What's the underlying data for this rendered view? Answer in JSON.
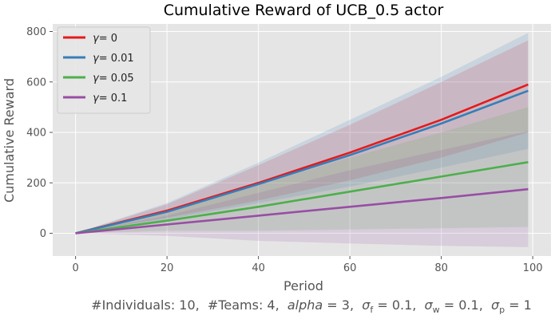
{
  "chart_data": {
    "type": "line",
    "title": "Cumulative Reward of UCB_0.5 actor",
    "xlabel": "Period",
    "ylabel": "Cumulative Reward",
    "xlim": [
      -5,
      104
    ],
    "ylim": [
      -90,
      830
    ],
    "xticks": [
      0,
      20,
      40,
      60,
      80,
      100
    ],
    "yticks": [
      0,
      200,
      400,
      600,
      800
    ],
    "grid": true,
    "legend_position": "top-left",
    "background": "#e5e5e5",
    "footnote_parts": [
      "#Individuals: 10,  #Teams: 4,  ",
      "alpha",
      " = 3,  ",
      "σ",
      "f",
      " = 0.1,  ",
      "σ",
      "w",
      " = 0.1,  ",
      "σ",
      "p",
      " = 1"
    ],
    "x": [
      0,
      20,
      40,
      60,
      80,
      99
    ],
    "series": [
      {
        "name_symbol": "γ",
        "name_value": "=  0",
        "color": "#e41a1c",
        "mean": [
          0,
          90,
          200,
          320,
          450,
          590
        ],
        "upper": [
          0,
          115,
          270,
          430,
          600,
          765
        ],
        "lower": [
          0,
          62,
          130,
          210,
          300,
          400
        ]
      },
      {
        "name_symbol": "γ",
        "name_value": "=  0.01",
        "color": "#377eb8",
        "mean": [
          0,
          85,
          195,
          310,
          435,
          565
        ],
        "upper": [
          0,
          120,
          280,
          450,
          620,
          795
        ],
        "lower": [
          0,
          55,
          120,
          185,
          260,
          335
        ]
      },
      {
        "name_symbol": "γ",
        "name_value": "=  0.05",
        "color": "#4daf4a",
        "mean": [
          0,
          50,
          105,
          165,
          225,
          282
        ],
        "upper": [
          0,
          80,
          190,
          300,
          400,
          500
        ],
        "lower": [
          0,
          10,
          10,
          15,
          20,
          25
        ]
      },
      {
        "name_symbol": "γ",
        "name_value": "=  0.1",
        "color": "#984ea3",
        "mean": [
          0,
          35,
          70,
          105,
          140,
          175
        ],
        "upper": [
          0,
          70,
          160,
          250,
          330,
          405
        ],
        "lower": [
          0,
          -10,
          -30,
          -40,
          -50,
          -55
        ]
      }
    ]
  }
}
